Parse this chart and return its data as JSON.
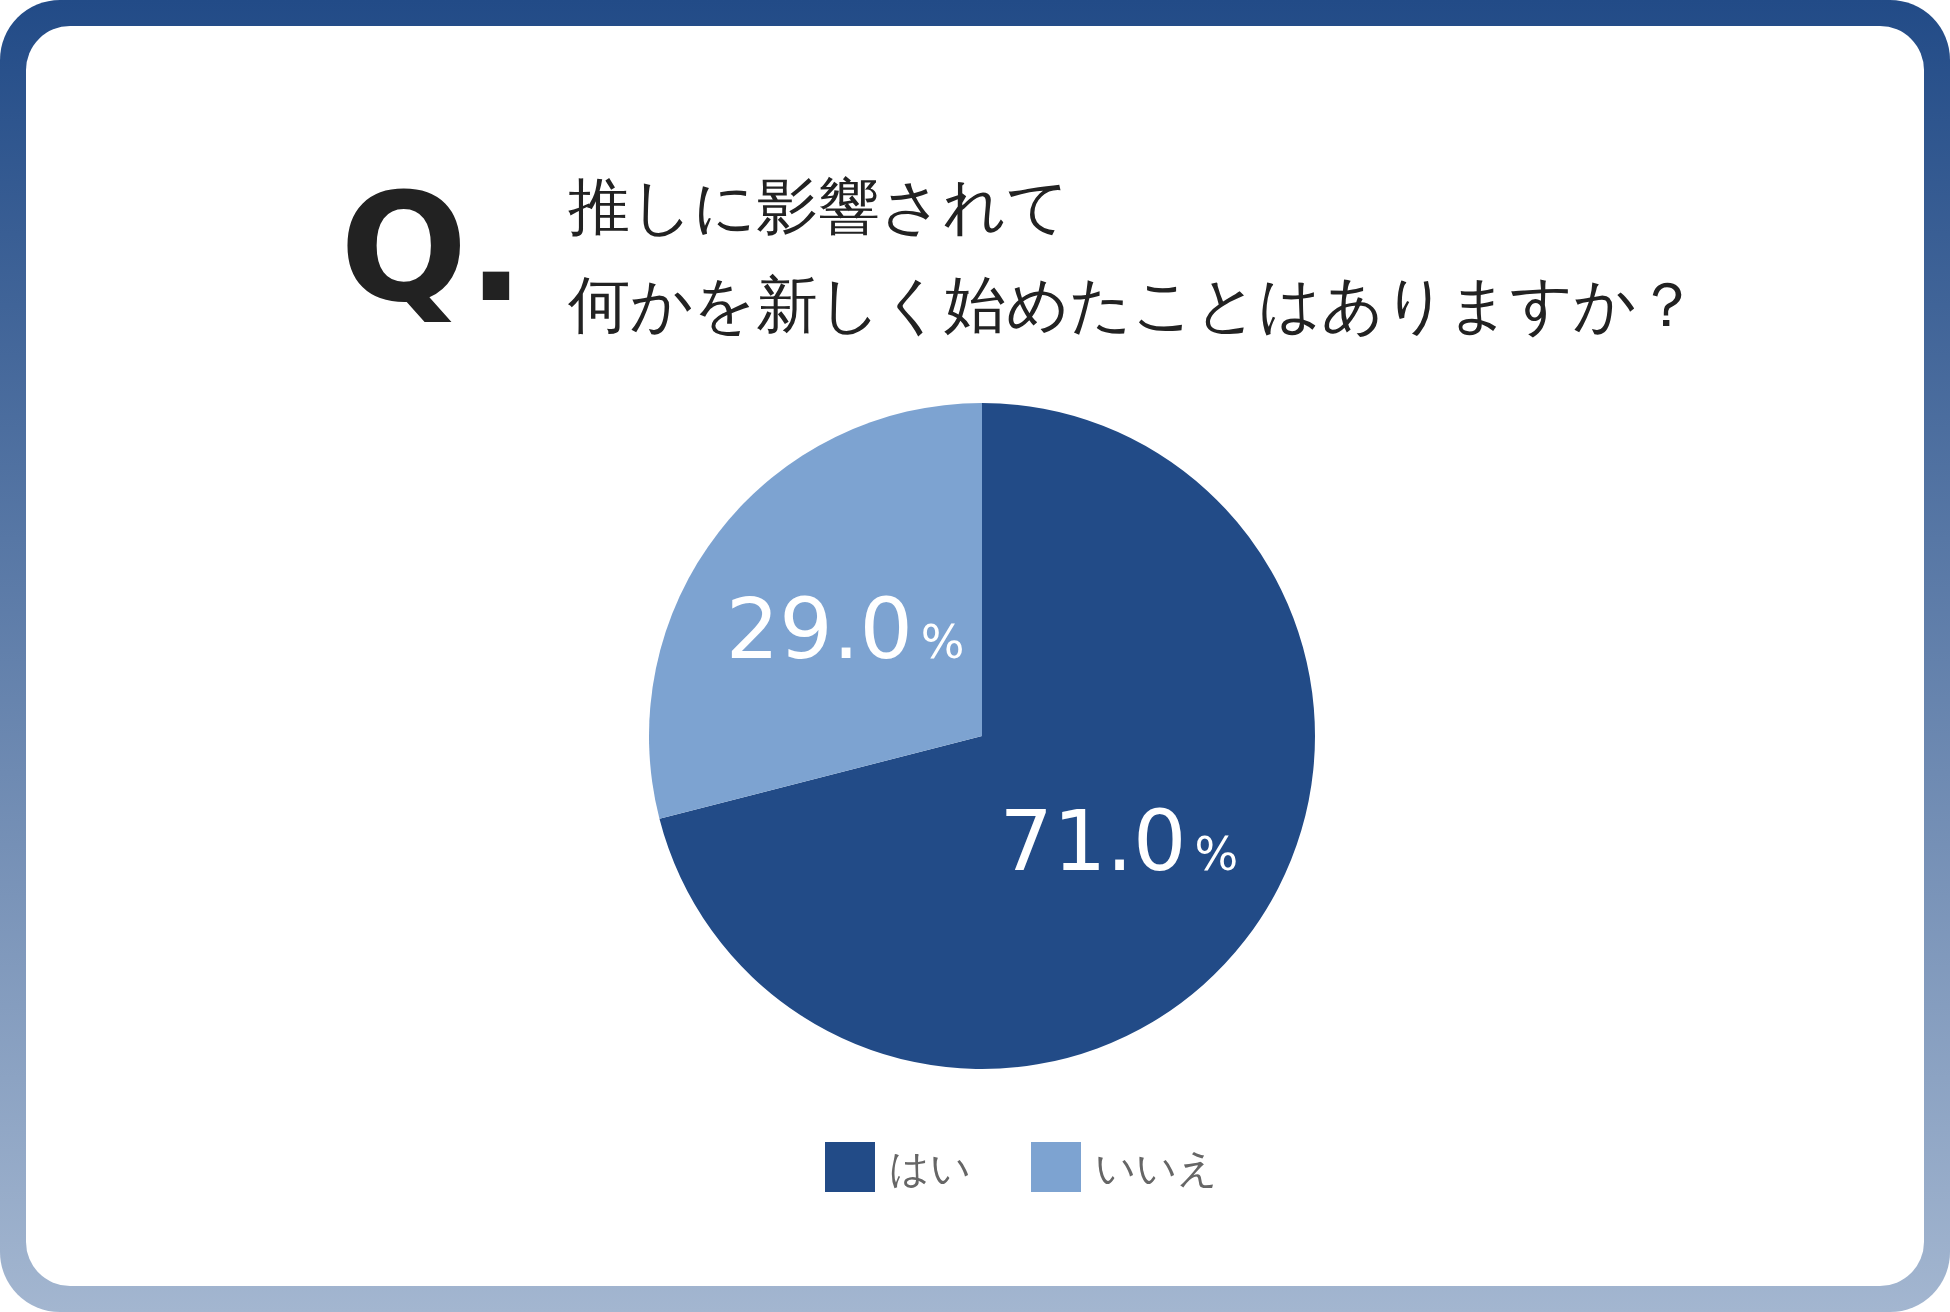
{
  "chart_data": {
    "type": "pie",
    "title": "推しに影響されて何かを新しく始めたことはありますか？",
    "annotations": [
      "Q."
    ],
    "categories": [
      "はい",
      "いいえ"
    ],
    "values": [
      71.0,
      29.0
    ],
    "colors": [
      "#224b87",
      "#7da3d1"
    ],
    "value_labels": [
      "71.0%",
      "29.0%"
    ],
    "legend": "bottom"
  }
}
